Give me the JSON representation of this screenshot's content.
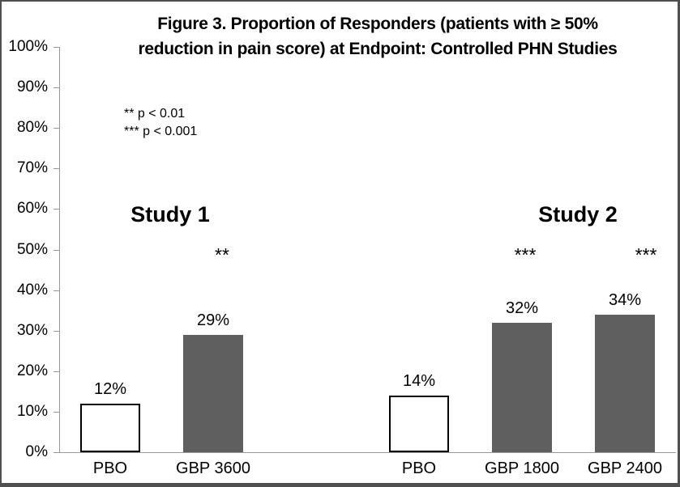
{
  "colors": {
    "bar_gray": "#5f5f5f",
    "bar_white_fill": "#ffffff",
    "bar_white_border": "#000000",
    "axis": "#999999",
    "frame": "#4f4f4f",
    "text": "#000000",
    "background": "#ffffff"
  },
  "chart_data": {
    "type": "bar",
    "title": "Figure 3. Proportion of Responders (patients with ≥ 50% reduction in pain score) at Endpoint: Controlled PHN Studies",
    "title_lines": [
      "Figure 3. Proportion of Responders (patients with ≥ 50%",
      "reduction in pain score) at Endpoint: Controlled PHN Studies"
    ],
    "xlabel": "",
    "ylabel": "",
    "ylim": [
      0,
      100
    ],
    "y_tick_step": 10,
    "y_tick_labels": [
      "0%",
      "10%",
      "20%",
      "30%",
      "40%",
      "50%",
      "60%",
      "70%",
      "80%",
      "90%",
      "100%"
    ],
    "grid": false,
    "legend": "none",
    "annotations": {
      "sig_note_line1": "** p < 0.01",
      "sig_note_line2": "*** p < 0.001"
    },
    "groups": [
      {
        "name": "Study 1",
        "bars": [
          {
            "category": "PBO",
            "value": 12,
            "value_label": "12%",
            "fill": "white",
            "significance": ""
          },
          {
            "category": "GBP 3600",
            "value": 29,
            "value_label": "29%",
            "fill": "gray",
            "significance": "**"
          }
        ]
      },
      {
        "name": "Study 2",
        "bars": [
          {
            "category": "PBO",
            "value": 14,
            "value_label": "14%",
            "fill": "white",
            "significance": ""
          },
          {
            "category": "GBP 1800",
            "value": 32,
            "value_label": "32%",
            "fill": "gray",
            "significance": "***"
          },
          {
            "category": "GBP 2400",
            "value": 34,
            "value_label": "34%",
            "fill": "gray",
            "significance": "***"
          }
        ]
      }
    ]
  }
}
